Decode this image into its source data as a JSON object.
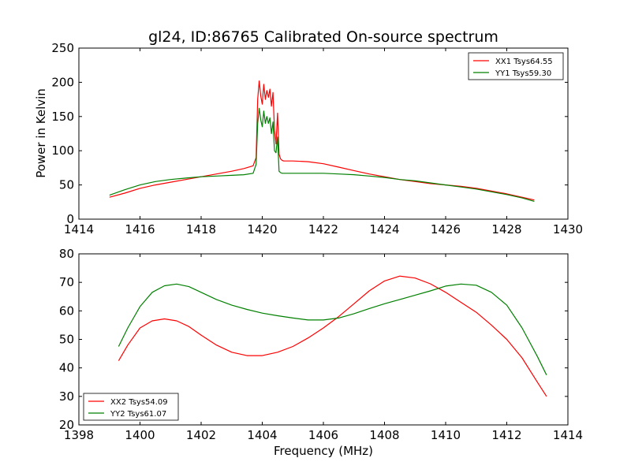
{
  "chart_data": [
    {
      "type": "line",
      "title": "gl24, ID:86765 Calibrated On-source spectrum",
      "xlabel": "",
      "ylabel": "Power in Kelvin",
      "xlim": [
        1414,
        1430
      ],
      "ylim": [
        0,
        250
      ],
      "xticks": [
        1414,
        1416,
        1418,
        1420,
        1422,
        1424,
        1426,
        1428,
        1430
      ],
      "yticks": [
        0,
        50,
        100,
        150,
        200,
        250
      ],
      "grid": false,
      "legend_position": "top-right",
      "series": [
        {
          "name": "XX1 Tsys64.55",
          "color": "#ff0000",
          "x": [
            1415.0,
            1415.5,
            1416.0,
            1416.5,
            1417.0,
            1417.5,
            1418.0,
            1418.5,
            1419.0,
            1419.4,
            1419.7,
            1419.8,
            1419.85,
            1419.9,
            1419.95,
            1420.0,
            1420.05,
            1420.1,
            1420.15,
            1420.2,
            1420.25,
            1420.3,
            1420.35,
            1420.4,
            1420.45,
            1420.5,
            1420.55,
            1420.6,
            1420.65,
            1420.7,
            1421.0,
            1421.5,
            1422.0,
            1422.5,
            1423.0,
            1423.5,
            1424.0,
            1424.5,
            1425.0,
            1425.5,
            1426.0,
            1426.5,
            1427.0,
            1427.5,
            1428.0,
            1428.5,
            1428.9
          ],
          "y": [
            32,
            38,
            45,
            50,
            54,
            58,
            62,
            66,
            70,
            74,
            78,
            90,
            175,
            202,
            180,
            168,
            197,
            175,
            188,
            178,
            190,
            165,
            185,
            130,
            110,
            155,
            95,
            88,
            86,
            85,
            85,
            84,
            81,
            76,
            71,
            66,
            62,
            58,
            55,
            52,
            50,
            48,
            45,
            41,
            37,
            32,
            28
          ]
        },
        {
          "name": "YY1 Tsys59.30",
          "color": "#008000",
          "x": [
            1415.0,
            1415.5,
            1416.0,
            1416.5,
            1417.0,
            1417.5,
            1418.0,
            1418.5,
            1419.0,
            1419.4,
            1419.7,
            1419.8,
            1419.85,
            1419.9,
            1419.95,
            1420.0,
            1420.05,
            1420.1,
            1420.15,
            1420.2,
            1420.25,
            1420.3,
            1420.35,
            1420.4,
            1420.45,
            1420.5,
            1420.55,
            1420.6,
            1420.65,
            1420.7,
            1421.0,
            1421.5,
            1422.0,
            1422.5,
            1423.0,
            1423.5,
            1424.0,
            1424.5,
            1425.0,
            1425.5,
            1426.0,
            1426.5,
            1427.0,
            1427.5,
            1428.0,
            1428.5,
            1428.9
          ],
          "y": [
            35,
            43,
            50,
            55,
            58,
            60,
            62,
            63,
            64,
            65,
            67,
            80,
            140,
            162,
            145,
            135,
            158,
            140,
            150,
            140,
            148,
            125,
            142,
            100,
            97,
            120,
            70,
            68,
            67,
            67,
            67,
            67,
            67,
            66,
            65,
            63,
            61,
            58,
            56,
            53,
            50,
            47,
            44,
            40,
            36,
            31,
            26
          ]
        }
      ]
    },
    {
      "type": "line",
      "title": "",
      "xlabel": "Frequency (MHz)",
      "ylabel": "",
      "xlim": [
        1398,
        1414
      ],
      "ylim": [
        20,
        80
      ],
      "xticks": [
        1398,
        1400,
        1402,
        1404,
        1406,
        1408,
        1410,
        1412,
        1414
      ],
      "yticks": [
        20,
        30,
        40,
        50,
        60,
        70,
        80
      ],
      "grid": false,
      "legend_position": "bottom-left",
      "series": [
        {
          "name": "XX2 Tsys54.09",
          "color": "#ff0000",
          "x": [
            1399.3,
            1399.6,
            1400.0,
            1400.4,
            1400.8,
            1401.2,
            1401.6,
            1402.0,
            1402.5,
            1403.0,
            1403.5,
            1404.0,
            1404.5,
            1405.0,
            1405.5,
            1406.0,
            1406.5,
            1407.0,
            1407.5,
            1408.0,
            1408.5,
            1409.0,
            1409.5,
            1410.0,
            1410.5,
            1411.0,
            1411.5,
            1412.0,
            1412.5,
            1413.0,
            1413.3
          ],
          "y": [
            42.5,
            48,
            54,
            56.5,
            57.2,
            56.5,
            54.5,
            51.5,
            48,
            45.5,
            44.3,
            44.3,
            45.5,
            47.5,
            50.5,
            54,
            58,
            62.5,
            67,
            70.5,
            72.2,
            71.5,
            69.5,
            66.5,
            63,
            59.5,
            55,
            50,
            43.5,
            35,
            30
          ]
        },
        {
          "name": "YY2 Tsys61.07",
          "color": "#008000",
          "x": [
            1399.3,
            1399.6,
            1400.0,
            1400.4,
            1400.8,
            1401.2,
            1401.6,
            1402.0,
            1402.5,
            1403.0,
            1403.5,
            1404.0,
            1404.5,
            1405.0,
            1405.5,
            1406.0,
            1406.5,
            1407.0,
            1407.5,
            1408.0,
            1408.5,
            1409.0,
            1409.5,
            1410.0,
            1410.5,
            1411.0,
            1411.5,
            1412.0,
            1412.5,
            1413.0,
            1413.3
          ],
          "y": [
            47.5,
            54,
            61.5,
            66.5,
            68.8,
            69.4,
            68.5,
            66.5,
            64,
            62,
            60.5,
            59.2,
            58.3,
            57.5,
            56.8,
            56.8,
            57.5,
            59,
            60.8,
            62.5,
            64,
            65.5,
            67,
            68.7,
            69.4,
            69,
            66.5,
            62,
            54,
            44,
            37.5
          ]
        }
      ]
    }
  ]
}
